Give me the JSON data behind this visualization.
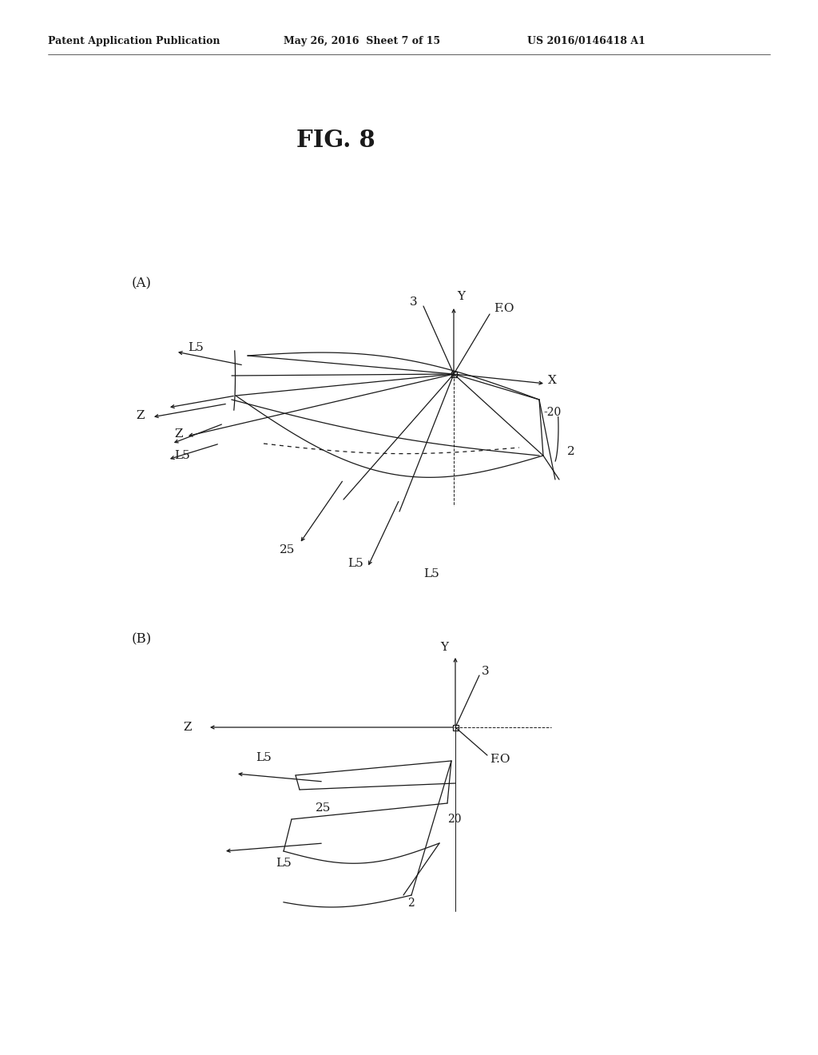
{
  "background_color": "#ffffff",
  "header_text": "Patent Application Publication",
  "header_date": "May 26, 2016  Sheet 7 of 15",
  "header_patent": "US 2016/0146418 A1",
  "figure_title": "FIG. 8",
  "panel_a_label": "(A)",
  "panel_b_label": "(B)",
  "color": "#1a1a1a",
  "lw": 0.9
}
